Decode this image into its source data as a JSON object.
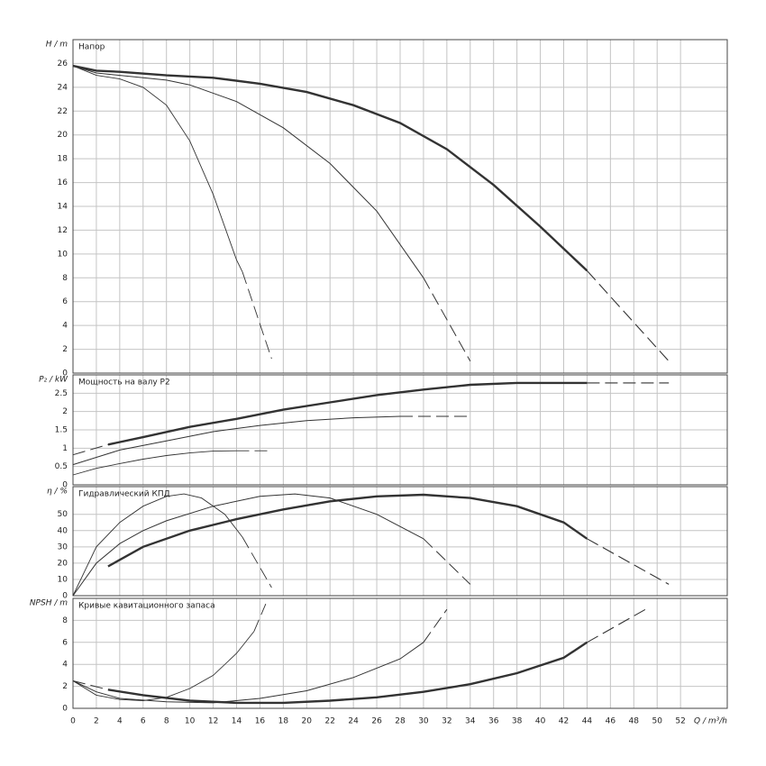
{
  "chart_data": [
    {
      "type": "line",
      "title": "Напор",
      "ylabel": "H / m",
      "ylim": [
        0,
        28
      ],
      "yticks": [
        0,
        2,
        4,
        6,
        8,
        10,
        12,
        14,
        16,
        18,
        20,
        22,
        24,
        26
      ],
      "xlim": [
        0,
        56
      ],
      "xticks": [
        0,
        2,
        4,
        6,
        8,
        10,
        12,
        14,
        16,
        18,
        20,
        22,
        24,
        26,
        28,
        30,
        32,
        34,
        36,
        38,
        40,
        42,
        44,
        46,
        48,
        50,
        52
      ],
      "series": [
        {
          "color": "#333333",
          "width": 2.4,
          "dashed": false,
          "x": [
            0,
            2,
            4,
            8,
            12,
            16,
            20,
            24,
            28,
            32,
            36,
            40,
            44
          ],
          "values": [
            25.8,
            25.4,
            25.3,
            25.0,
            24.8,
            24.3,
            23.6,
            22.5,
            21.0,
            18.8,
            15.8,
            12.3,
            8.6
          ]
        },
        {
          "color": "#333333",
          "width": 1.1,
          "dashed": true,
          "x": [
            44,
            51
          ],
          "values": [
            8.6,
            1.0
          ]
        },
        {
          "color": "#333333",
          "width": 1,
          "dashed": false,
          "x": [
            0,
            2,
            4,
            8,
            10,
            14,
            18,
            22,
            26,
            30
          ],
          "values": [
            25.8,
            25.2,
            25.0,
            24.6,
            24.2,
            22.8,
            20.6,
            17.6,
            13.6,
            8.0
          ]
        },
        {
          "color": "#333333",
          "width": 1,
          "dashed": true,
          "x": [
            30,
            34
          ],
          "values": [
            8.0,
            1.0
          ]
        },
        {
          "color": "#333333",
          "width": 0.9,
          "dashed": false,
          "x": [
            0,
            2,
            4,
            6,
            8,
            10,
            12,
            14,
            14.5
          ],
          "values": [
            25.8,
            25.0,
            24.7,
            24.0,
            22.5,
            19.5,
            15.0,
            9.5,
            8.5
          ]
        },
        {
          "color": "#333333",
          "width": 0.9,
          "dashed": true,
          "x": [
            14.5,
            17
          ],
          "values": [
            8.5,
            1.2
          ]
        }
      ]
    },
    {
      "type": "line",
      "title": "Мощность на валу P2",
      "ylabel": "P₂ / kW",
      "ylim": [
        0,
        3
      ],
      "yticks": [
        0,
        0.5,
        1,
        1.5,
        2,
        2.5
      ],
      "xlim": [
        0,
        56
      ],
      "xticks": [
        0,
        2,
        4,
        6,
        8,
        10,
        12,
        14,
        16,
        18,
        20,
        22,
        24,
        26,
        28,
        30,
        32,
        34,
        36,
        38,
        40,
        42,
        44,
        46,
        48,
        50,
        52
      ],
      "series": [
        {
          "color": "#333333",
          "width": 1,
          "dashed": true,
          "x": [
            0,
            3
          ],
          "values": [
            0.82,
            1.1
          ]
        },
        {
          "color": "#333333",
          "width": 2.4,
          "dashed": false,
          "x": [
            3,
            6,
            10,
            14,
            18,
            22,
            26,
            30,
            34,
            38,
            44
          ],
          "values": [
            1.1,
            1.3,
            1.58,
            1.8,
            2.05,
            2.25,
            2.45,
            2.6,
            2.73,
            2.78,
            2.78
          ]
        },
        {
          "color": "#333333",
          "width": 1.1,
          "dashed": true,
          "x": [
            44,
            51
          ],
          "values": [
            2.78,
            2.78
          ]
        },
        {
          "color": "#333333",
          "width": 1,
          "dashed": false,
          "x": [
            0,
            4,
            8,
            12,
            16,
            20,
            24,
            28
          ],
          "values": [
            0.55,
            0.95,
            1.2,
            1.45,
            1.62,
            1.75,
            1.83,
            1.87
          ]
        },
        {
          "color": "#333333",
          "width": 1,
          "dashed": true,
          "x": [
            28,
            34
          ],
          "values": [
            1.87,
            1.87
          ]
        },
        {
          "color": "#333333",
          "width": 0.9,
          "dashed": false,
          "x": [
            0,
            2,
            4,
            6,
            8,
            10,
            12,
            14
          ],
          "values": [
            0.27,
            0.45,
            0.58,
            0.7,
            0.8,
            0.87,
            0.92,
            0.93
          ]
        },
        {
          "color": "#333333",
          "width": 0.9,
          "dashed": true,
          "x": [
            14,
            17
          ],
          "values": [
            0.93,
            0.93
          ]
        }
      ]
    },
    {
      "type": "line",
      "title": "Гидравлический КПД",
      "ylabel": "η / %",
      "ylim": [
        0,
        67
      ],
      "yticks": [
        0,
        10,
        20,
        30,
        40,
        50
      ],
      "xlim": [
        0,
        56
      ],
      "xticks": [
        0,
        2,
        4,
        6,
        8,
        10,
        12,
        14,
        16,
        18,
        20,
        22,
        24,
        26,
        28,
        30,
        32,
        34,
        36,
        38,
        40,
        42,
        44,
        46,
        48,
        50,
        52
      ],
      "series": [
        {
          "color": "#333333",
          "width": 2.4,
          "dashed": false,
          "x": [
            3,
            6,
            10,
            14,
            18,
            22,
            26,
            30,
            34,
            38,
            42,
            44
          ],
          "values": [
            18,
            30,
            40,
            47,
            53,
            58,
            61,
            62,
            60,
            55,
            45,
            35
          ]
        },
        {
          "color": "#333333",
          "width": 1.1,
          "dashed": true,
          "x": [
            44,
            51
          ],
          "values": [
            35,
            7
          ]
        },
        {
          "color": "#333333",
          "width": 1,
          "dashed": false,
          "x": [
            0,
            2,
            4,
            6,
            8,
            12,
            16,
            19,
            22,
            26,
            30
          ],
          "values": [
            0,
            20,
            32,
            40,
            46,
            55,
            61,
            62.5,
            60,
            50,
            35
          ]
        },
        {
          "color": "#333333",
          "width": 1,
          "dashed": true,
          "x": [
            30,
            34
          ],
          "values": [
            35,
            7
          ]
        },
        {
          "color": "#333333",
          "width": 0.9,
          "dashed": false,
          "x": [
            0,
            2,
            4,
            6,
            8,
            9.5,
            11,
            13,
            14.5
          ],
          "values": [
            0,
            30,
            45,
            55,
            61,
            62.5,
            60,
            50,
            36
          ]
        },
        {
          "color": "#333333",
          "width": 0.9,
          "dashed": true,
          "x": [
            14.5,
            17
          ],
          "values": [
            36,
            5
          ]
        }
      ]
    },
    {
      "type": "line",
      "title": "Кривые кавитационного запаса",
      "ylabel": "NPSH / m",
      "xlabel": "Q / m³/h",
      "ylim": [
        0,
        10
      ],
      "yticks": [
        0,
        2,
        4,
        6,
        8
      ],
      "xlim": [
        0,
        56
      ],
      "xticks": [
        0,
        2,
        4,
        6,
        8,
        10,
        12,
        14,
        16,
        18,
        20,
        22,
        24,
        26,
        28,
        30,
        32,
        34,
        36,
        38,
        40,
        42,
        44,
        46,
        48,
        50,
        52
      ],
      "series": [
        {
          "color": "#333333",
          "width": 1,
          "dashed": true,
          "x": [
            0,
            3
          ],
          "values": [
            2.5,
            1.7
          ]
        },
        {
          "color": "#333333",
          "width": 2.4,
          "dashed": false,
          "x": [
            3,
            6,
            10,
            14,
            18,
            22,
            26,
            30,
            34,
            38,
            42,
            44
          ],
          "values": [
            1.7,
            1.2,
            0.7,
            0.5,
            0.5,
            0.7,
            1.0,
            1.5,
            2.2,
            3.2,
            4.6,
            6.0
          ]
        },
        {
          "color": "#333333",
          "width": 1.1,
          "dashed": true,
          "x": [
            44,
            49
          ],
          "values": [
            6.0,
            9.0
          ]
        },
        {
          "color": "#333333",
          "width": 1,
          "dashed": false,
          "x": [
            0,
            2,
            4,
            8,
            12,
            16,
            20,
            24,
            28,
            30
          ],
          "values": [
            2.5,
            1.5,
            0.9,
            0.6,
            0.5,
            0.9,
            1.6,
            2.8,
            4.5,
            6.0
          ]
        },
        {
          "color": "#333333",
          "width": 1,
          "dashed": true,
          "x": [
            30,
            32
          ],
          "values": [
            6.0,
            9.0
          ]
        },
        {
          "color": "#333333",
          "width": 0.9,
          "dashed": false,
          "x": [
            0,
            2,
            4,
            6,
            8,
            10,
            12,
            14,
            15.5
          ],
          "values": [
            2.5,
            1.2,
            0.8,
            0.7,
            1.0,
            1.8,
            3.0,
            5.0,
            7.0
          ]
        },
        {
          "color": "#333333",
          "width": 0.9,
          "dashed": true,
          "x": [
            15.5,
            16.5
          ],
          "values": [
            7.0,
            9.5
          ]
        }
      ]
    }
  ]
}
